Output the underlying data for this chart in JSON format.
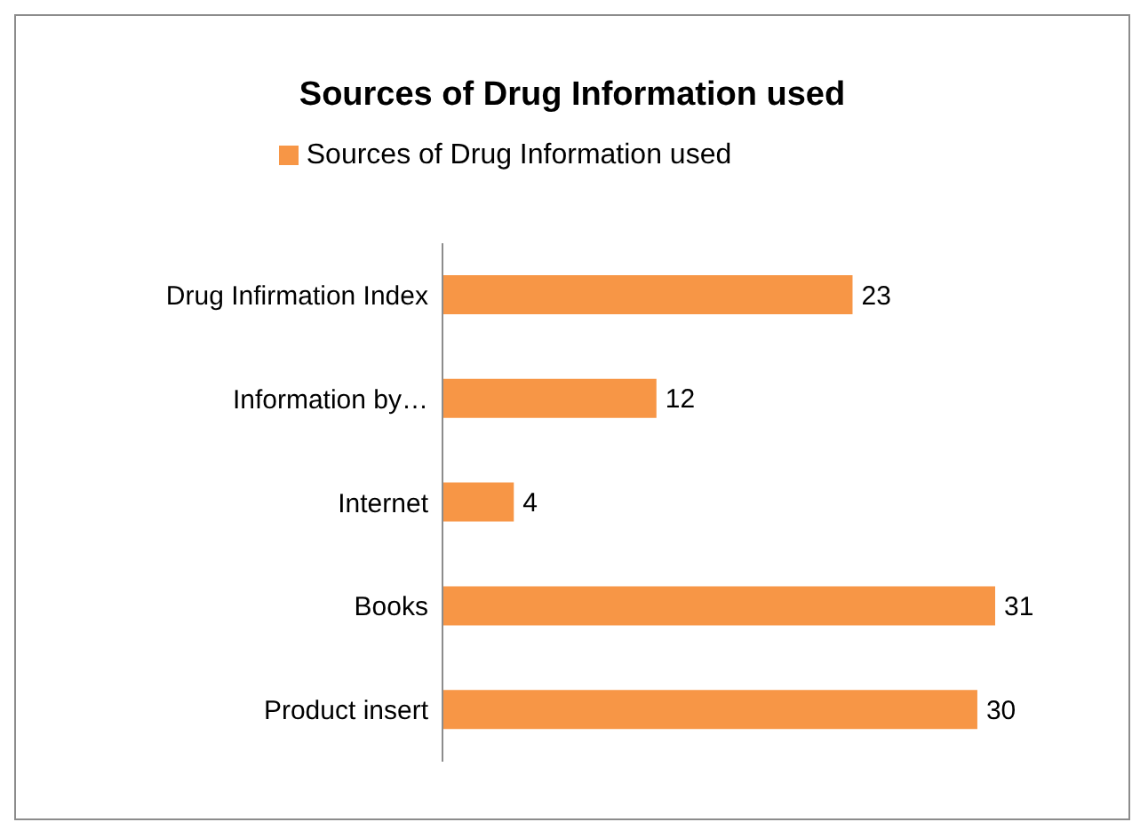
{
  "chart_data": {
    "type": "bar",
    "orientation": "horizontal",
    "title": "Sources of Drug Information used",
    "categories": [
      "Drug Infirmation Index",
      "Information by…",
      "Internet",
      "Books",
      "Product insert"
    ],
    "series": [
      {
        "name": "Sources of Drug Information used",
        "color": "#f79646",
        "values": [
          23,
          12,
          4,
          31,
          30
        ]
      }
    ],
    "data_labels": true,
    "legend": "top",
    "grid": false
  }
}
